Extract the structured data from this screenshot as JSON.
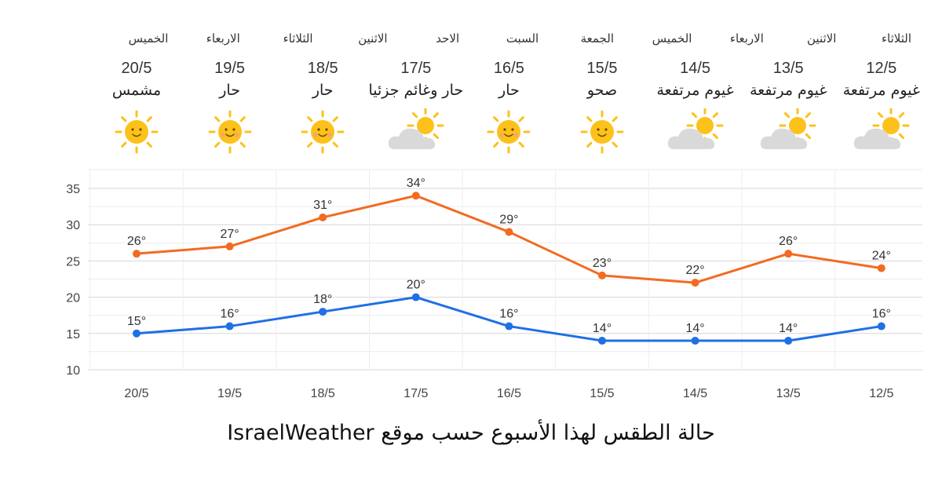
{
  "colors": {
    "high_series": "#F26B21",
    "low_series": "#1F6FE5",
    "grid": "#DDDDDD",
    "sun": "#FCC21B",
    "cloud": "#D9D9D9"
  },
  "forecast": [
    {
      "day": "الخميس",
      "date": "20/5",
      "condition": "مشمس",
      "icon": "sun-icon"
    },
    {
      "day": "الاربعاء",
      "date": "19/5",
      "condition": "حار",
      "icon": "hot-sun-icon"
    },
    {
      "day": "الثلاثاء",
      "date": "18/5",
      "condition": "حار",
      "icon": "hot-sun-icon"
    },
    {
      "day": "الاثنين",
      "date": "17/5",
      "condition": "حار وغائم جزئيا",
      "icon": "partly-cloudy-icon"
    },
    {
      "day": "الاحد",
      "date": "16/5",
      "condition": "حار",
      "icon": "hot-sun-icon"
    },
    {
      "day": "السبت",
      "date": "15/5",
      "condition": "صحو",
      "icon": "sun-icon"
    },
    {
      "day": "الجمعة",
      "date": "14/5",
      "condition": "غيوم مرتفعة",
      "icon": "partly-cloudy-icon"
    },
    {
      "day": "الخميس",
      "date": "13/5",
      "condition": "غيوم مرتفعة",
      "icon": "partly-cloudy-icon"
    },
    {
      "day": "الاربعاء",
      "date": "12/5",
      "condition": "غيوم مرتفعة",
      "icon": "partly-cloudy-icon"
    },
    {
      "day": "الاثنين",
      "date": "",
      "condition": "",
      "icon": ""
    },
    {
      "day": "الثلاثاء",
      "date": "",
      "condition": "",
      "icon": ""
    }
  ],
  "chart_data": {
    "type": "line",
    "categories": [
      "20/5",
      "19/5",
      "18/5",
      "17/5",
      "16/5",
      "15/5",
      "14/5",
      "13/5",
      "12/5"
    ],
    "series": [
      {
        "values": [
          26,
          27,
          31,
          34,
          29,
          23,
          22,
          26,
          24
        ],
        "labels": [
          "26°",
          "27°",
          "31°",
          "34°",
          "29°",
          "23°",
          "22°",
          "26°",
          "24°"
        ]
      },
      {
        "values": [
          15,
          16,
          18,
          20,
          16,
          14,
          14,
          14,
          16
        ],
        "labels": [
          "15°",
          "16°",
          "18°",
          "20°",
          "16°",
          "14°",
          "14°",
          "14°",
          "16°"
        ]
      }
    ],
    "yticks": [
      "10",
      "15",
      "20",
      "25",
      "30",
      "35"
    ],
    "ylim": [
      10,
      35
    ],
    "grid": true,
    "legend": "none"
  },
  "caption": "حالة الطقس لهذا الأسبوع حسب موقع IsraelWeather"
}
